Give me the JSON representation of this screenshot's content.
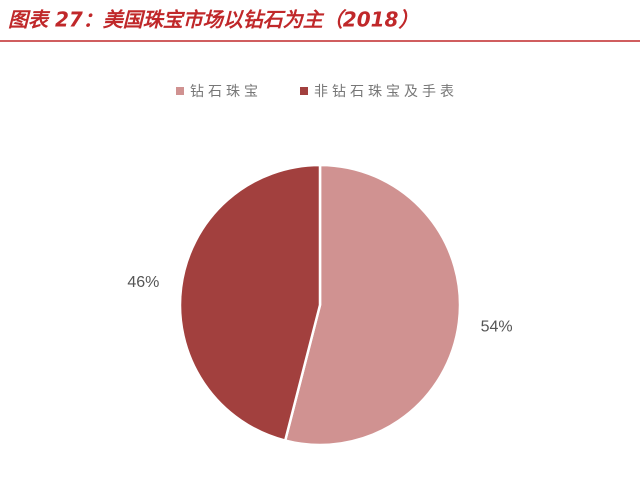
{
  "chart_data": {
    "type": "pie",
    "title": "图表 27：美国珠宝市场以钻石为主（2018）",
    "categories": [
      "钻石珠宝",
      "非钻石珠宝及手表"
    ],
    "values": [
      54,
      46
    ],
    "value_labels": [
      "54%",
      "46%"
    ],
    "colors": [
      "#d09291",
      "#a2403e"
    ],
    "legend": "top"
  }
}
